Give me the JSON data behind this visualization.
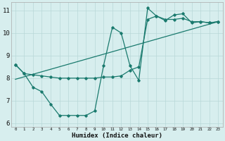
{
  "xlabel": "Humidex (Indice chaleur)",
  "bg_color": "#d7eeee",
  "grid_color": "#b8d8d8",
  "line_color": "#1a7a6e",
  "xlim": [
    -0.5,
    23.5
  ],
  "ylim": [
    5.85,
    11.35
  ],
  "xticks": [
    0,
    1,
    2,
    3,
    4,
    5,
    6,
    7,
    8,
    9,
    10,
    11,
    12,
    13,
    14,
    15,
    16,
    17,
    18,
    19,
    20,
    21,
    22,
    23
  ],
  "yticks": [
    6,
    7,
    8,
    9,
    10,
    11
  ],
  "line1_x": [
    0,
    1,
    2,
    3,
    4,
    5,
    6,
    7,
    8,
    9,
    10,
    11,
    12,
    13,
    14,
    15,
    16,
    17,
    18,
    19,
    20,
    21,
    22,
    23
  ],
  "line1_y": [
    8.6,
    8.2,
    7.6,
    7.4,
    6.85,
    6.35,
    6.35,
    6.35,
    6.35,
    6.55,
    8.55,
    10.25,
    10.0,
    8.55,
    7.9,
    11.1,
    10.75,
    10.55,
    10.8,
    10.85,
    10.45,
    10.5,
    10.45,
    10.5
  ],
  "line2_x": [
    0,
    1,
    2,
    3,
    4,
    5,
    6,
    7,
    8,
    9,
    10,
    11,
    12,
    13,
    14,
    15,
    16,
    17,
    18,
    19,
    20,
    21,
    22,
    23
  ],
  "line2_y": [
    8.6,
    8.2,
    8.15,
    8.1,
    8.05,
    8.0,
    8.0,
    8.0,
    8.0,
    8.0,
    8.05,
    8.05,
    8.1,
    8.35,
    8.5,
    10.6,
    10.75,
    10.6,
    10.6,
    10.65,
    10.5,
    10.5,
    10.45,
    10.5
  ],
  "line3_x": [
    0,
    23
  ],
  "line3_y": [
    7.95,
    10.5
  ]
}
